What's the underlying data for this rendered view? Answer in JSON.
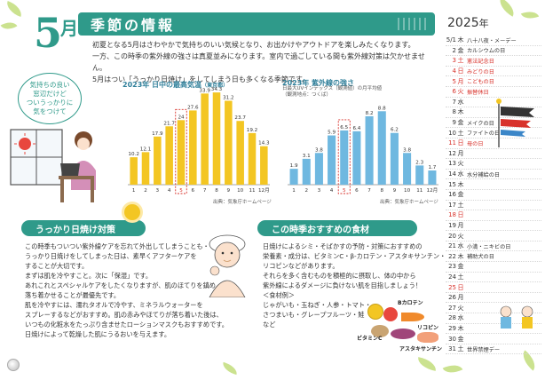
{
  "header": {
    "month_num": "5",
    "month_kanji": "月",
    "title": "季節の情報"
  },
  "intro": [
    "初夏となる5月はさわやかで気持ちのいい気候となり、お出かけやアウトドアを楽しみたくなります。",
    "一方、この時季の紫外線の強さは真夏並みになります。室内で過ごしている間も紫外線対策は欠かせません。",
    "5月はつい「うっかり日焼け」をしてしまう日も多くなる季節です。"
  ],
  "bubble_text": [
    "気持ちの良い",
    "窓辺だけど",
    "ついうっかりに",
    "気をつけて"
  ],
  "chart_data": [
    {
      "type": "bar",
      "title": "2023年 日中の最高気温",
      "title_note": "（東京都）",
      "categories": [
        "1",
        "2",
        "3",
        "4",
        "5",
        "6",
        "7",
        "8",
        "9",
        "10",
        "11",
        "12月"
      ],
      "values": [
        10.2,
        12.1,
        17.9,
        21.7,
        24.0,
        27.6,
        33.9,
        34.3,
        31.2,
        23.7,
        19.2,
        14.3
      ],
      "ylim": [
        0,
        35
      ],
      "highlight": "5",
      "source": "出典：気象庁ホームページ",
      "bar_color": "#f3c623"
    },
    {
      "type": "bar",
      "title": "2023年 紫外線の強さ",
      "note": [
        "日最大UVインデックス（観測値）の月平均値",
        "（観測地点：つくば）"
      ],
      "categories": [
        "1",
        "2",
        "3",
        "4",
        "5",
        "6",
        "7",
        "8",
        "9",
        "10",
        "11",
        "12月"
      ],
      "values": [
        1.9,
        3.1,
        3.8,
        5.9,
        6.5,
        6.4,
        8.2,
        8.8,
        6.2,
        3.8,
        2.3,
        1.7
      ],
      "ylim": [
        0,
        10
      ],
      "highlight": "5",
      "source": "出典：気象庁ホームページ",
      "bar_color": "#6fb8e0"
    }
  ],
  "calendar": {
    "year": "2025",
    "year_suffix": "年",
    "days": [
      {
        "d": "5/1",
        "w": "木",
        "e": "八十八夜・メーデー",
        "red": false
      },
      {
        "d": "2",
        "w": "金",
        "e": "カルシウムの日",
        "red": false
      },
      {
        "d": "3",
        "w": "土",
        "e": "憲法記念日",
        "red": true
      },
      {
        "d": "4",
        "w": "日",
        "e": "みどりの日",
        "red": true
      },
      {
        "d": "5",
        "w": "月",
        "e": "こどもの日",
        "red": true
      },
      {
        "d": "6",
        "w": "火",
        "e": "振替休日",
        "red": true
      },
      {
        "d": "7",
        "w": "水",
        "e": "",
        "red": false
      },
      {
        "d": "8",
        "w": "木",
        "e": "",
        "red": false
      },
      {
        "d": "9",
        "w": "金",
        "e": "メイクの日",
        "red": false
      },
      {
        "d": "10",
        "w": "土",
        "e": "ファイトの日",
        "red": false
      },
      {
        "d": "11",
        "w": "日",
        "e": "母の日",
        "red": true
      },
      {
        "d": "12",
        "w": "月",
        "e": "",
        "red": false
      },
      {
        "d": "13",
        "w": "火",
        "e": "",
        "red": false
      },
      {
        "d": "14",
        "w": "水",
        "e": "水分補給の日",
        "red": false
      },
      {
        "d": "15",
        "w": "木",
        "e": "",
        "red": false
      },
      {
        "d": "16",
        "w": "金",
        "e": "",
        "red": false
      },
      {
        "d": "17",
        "w": "土",
        "e": "",
        "red": false
      },
      {
        "d": "18",
        "w": "日",
        "e": "",
        "red": true
      },
      {
        "d": "19",
        "w": "月",
        "e": "",
        "red": false
      },
      {
        "d": "20",
        "w": "火",
        "e": "",
        "red": false
      },
      {
        "d": "21",
        "w": "水",
        "e": "小満・ニキビの日",
        "red": false
      },
      {
        "d": "22",
        "w": "木",
        "e": "補助犬の日",
        "red": false
      },
      {
        "d": "23",
        "w": "金",
        "e": "",
        "red": false
      },
      {
        "d": "24",
        "w": "土",
        "e": "",
        "red": false
      },
      {
        "d": "25",
        "w": "日",
        "e": "",
        "red": true
      },
      {
        "d": "26",
        "w": "月",
        "e": "",
        "red": false
      },
      {
        "d": "27",
        "w": "火",
        "e": "",
        "red": false
      },
      {
        "d": "28",
        "w": "水",
        "e": "",
        "red": false
      },
      {
        "d": "29",
        "w": "木",
        "e": "",
        "red": false
      },
      {
        "d": "30",
        "w": "金",
        "e": "",
        "red": false
      },
      {
        "d": "31",
        "w": "土",
        "e": "世界禁煙デー",
        "red": false
      }
    ]
  },
  "sunburn": {
    "heading": "うっかり日焼け対策",
    "lines": [
      "この時季もついつい紫外線ケアを忘れて外出してしまうことも・・・",
      "うっかり日焼けをしてしまった日は、素早くアフターケアを",
      "することが大切です。",
      "まずは肌を冷やすこと。次に「保湿」です。",
      "あれこれとスペシャルケアをしたくなりますが、肌のほてりを鎮め、",
      "落ち着かせることが最優先です。",
      "肌を冷やすには、濡れタオルで冷やす、ミネラルウォーターを",
      "スプレーするなどがおすすめ。肌の赤みやほてりが落ち着いた後は、",
      "いつもの化粧水をたっぷり含ませたローションマスクもおすすめです。",
      "日焼けによって乾燥した肌にうるおいを与えます。"
    ]
  },
  "foods": {
    "heading": "この時季おすすめの食材",
    "lines": [
      "日焼けによるシミ・そばかすの予防・対策におすすめの",
      "栄養素・成分は、ビタミンC・β-カロテン・アスタキサンチン・",
      "リコピンなどがあります。",
      "それらを多く含むものを積極的に摂取し、体の中から",
      "紫外線によるダメージに負けない肌を目指しましょう！",
      "＜食材例＞",
      "じゃがいも・玉ねぎ・人参・トマト・",
      "さつまいも・グレープフルーツ・鮭",
      "など"
    ],
    "labels": {
      "b": "Bカロテン",
      "lyco": "リコピン",
      "vitc": "ビタミンC",
      "asta": "アスタキサンチン"
    }
  },
  "colors": {
    "teal": "#2f9a8a",
    "red": "#d8322b",
    "yellow": "#f3c623",
    "blue": "#6fb8e0"
  }
}
